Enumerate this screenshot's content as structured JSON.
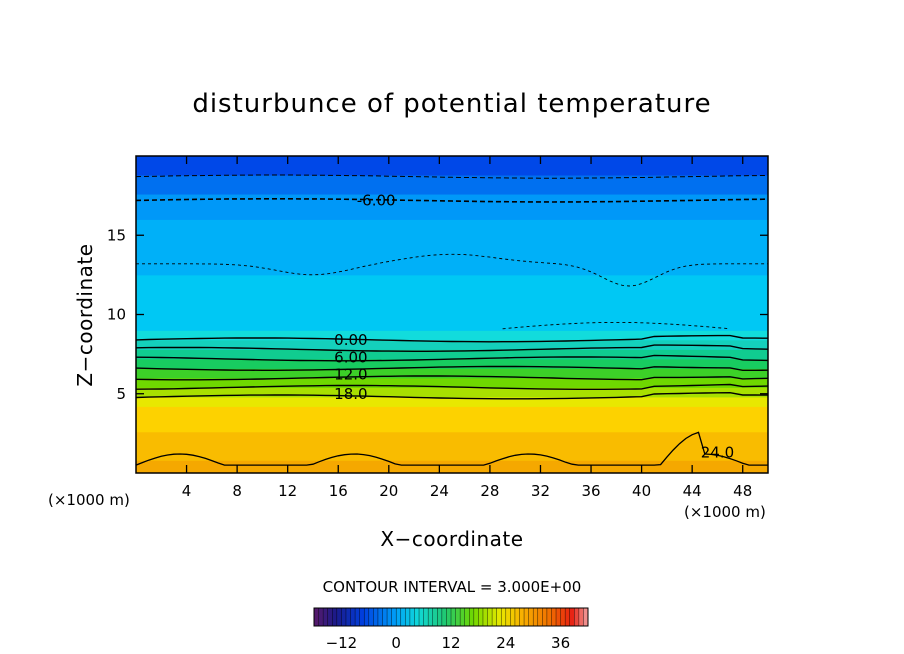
{
  "chart_data": {
    "type": "contour",
    "title": "disturbunce of potential temperature",
    "xlabel": "X−coordinate",
    "ylabel": "Z−coordinate",
    "x_unit": "(×1000 m)",
    "xlim": [
      0,
      50
    ],
    "ylim": [
      0,
      20
    ],
    "x_ticks": [
      4,
      8,
      12,
      16,
      20,
      24,
      28,
      32,
      36,
      40,
      44,
      48
    ],
    "x_tick_labels": [
      "4",
      "8",
      "12",
      "16",
      "20",
      "24",
      "28",
      "32",
      "36",
      "40",
      "44",
      "48"
    ],
    "y_ticks": [
      5,
      10,
      15
    ],
    "y_tick_labels": [
      "5",
      "10",
      "15"
    ],
    "contour_interval_text": "CONTOUR INTERVAL = 3.000E+00",
    "contour_interval": 3.0,
    "contour_labels": [
      {
        "text": "-6.00",
        "x": 19,
        "z": 17.2
      },
      {
        "text": "0.00",
        "x": 17,
        "z": 8.4
      },
      {
        "text": "6.00",
        "x": 17,
        "z": 7.3
      },
      {
        "text": "12.0",
        "x": 17,
        "z": 6.2
      },
      {
        "text": "18.0",
        "x": 17,
        "z": 5.0
      },
      {
        "text": "24.0",
        "x": 46,
        "z": 1.3
      }
    ],
    "bands": [
      {
        "z0": 0.0,
        "z1": 0.8,
        "value": 27,
        "color": "#f5a800"
      },
      {
        "z0": 0.8,
        "z1": 2.6,
        "value": 25,
        "color": "#f9bc00"
      },
      {
        "z0": 2.6,
        "z1": 4.2,
        "value": 23,
        "color": "#fdd200"
      },
      {
        "z0": 4.2,
        "z1": 4.8,
        "value": 20,
        "color": "#e8e800"
      },
      {
        "z0": 4.8,
        "z1": 5.4,
        "value": 18,
        "color": "#a8e000"
      },
      {
        "z0": 5.4,
        "z1": 6.0,
        "value": 15,
        "color": "#6fd800"
      },
      {
        "z0": 6.0,
        "z1": 6.6,
        "value": 12,
        "color": "#3cd028"
      },
      {
        "z0": 6.6,
        "z1": 7.2,
        "value": 9,
        "color": "#18cc60"
      },
      {
        "z0": 7.2,
        "z1": 7.8,
        "value": 6,
        "color": "#10cc90"
      },
      {
        "z0": 7.8,
        "z1": 8.4,
        "value": 3,
        "color": "#14d0bc"
      },
      {
        "z0": 8.4,
        "z1": 9.0,
        "value": 0,
        "color": "#12dcdc"
      },
      {
        "z0": 9.0,
        "z1": 12.5,
        "value": -2,
        "color": "#00c8f4"
      },
      {
        "z0": 12.5,
        "z1": 16.0,
        "value": -4,
        "color": "#00b0f8"
      },
      {
        "z0": 16.0,
        "z1": 17.6,
        "value": -6,
        "color": "#0098f8"
      },
      {
        "z0": 17.6,
        "z1": 18.8,
        "value": -8,
        "color": "#0070f0"
      },
      {
        "z0": 18.8,
        "z1": 20.0,
        "value": -10,
        "color": "#0048e8"
      }
    ],
    "colorbar": {
      "vmin": -18,
      "vmax": 42,
      "ticks": [
        -12,
        0,
        12,
        24,
        36
      ],
      "tick_labels": [
        "−12",
        "0",
        "12",
        "24",
        "36"
      ]
    }
  }
}
